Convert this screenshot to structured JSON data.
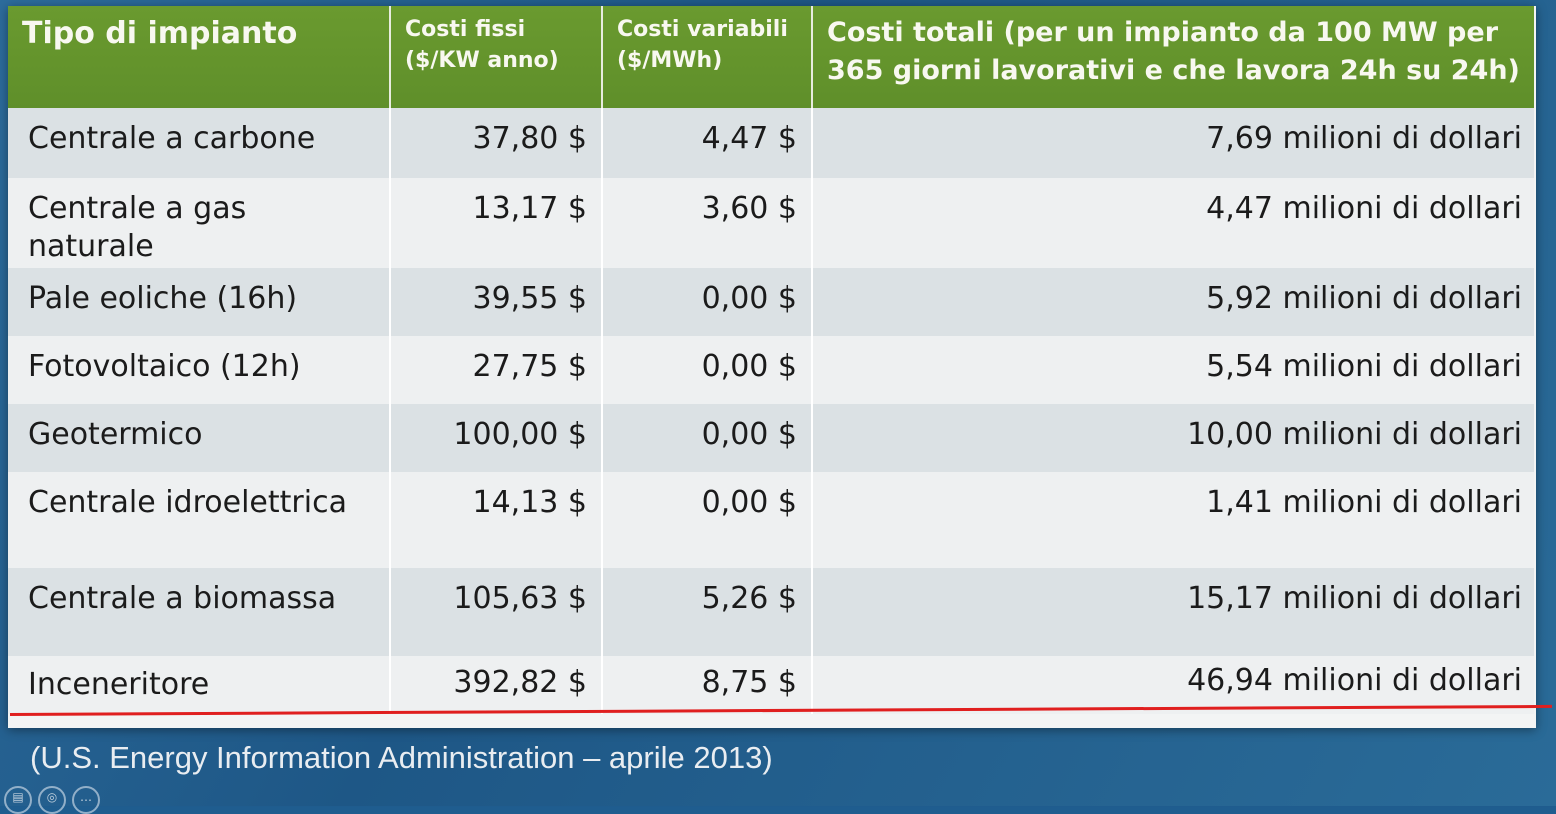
{
  "table": {
    "headers": {
      "type": "Tipo di impianto",
      "fixed": "Costi fissi\n($/KW anno)",
      "variable": "Costi variabili\n($/MWh)",
      "total": "Costi totali (per  un impianto da 100 MW per 365 giorni lavorativi e che lavora 24h su 24h)"
    },
    "rows": [
      {
        "name": "Centrale a carbone",
        "fixed": "37,80 $",
        "variable": "4,47 $",
        "total": "7,69 milioni di dollari"
      },
      {
        "name": "Centrale a gas naturale",
        "fixed": "13,17 $",
        "variable": "3,60 $",
        "total": "4,47 milioni di dollari"
      },
      {
        "name": "Pale eoliche (16h)",
        "fixed": "39,55 $",
        "variable": "0,00 $",
        "total": "5,92 milioni di dollari"
      },
      {
        "name": "Fotovoltaico (12h)",
        "fixed": "27,75 $",
        "variable": "0,00 $",
        "total": "5,54 milioni di dollari"
      },
      {
        "name": "Geotermico",
        "fixed": "100,00 $",
        "variable": "0,00 $",
        "total": "10,00 milioni di dollari"
      },
      {
        "name": "Centrale idroelettrica",
        "fixed": "14,13 $",
        "variable": "0,00 $",
        "total": "1,41 milioni di dollari"
      },
      {
        "name": "Centrale a biomassa",
        "fixed": "105,63 $",
        "variable": "5,26 $",
        "total": "15,17 milioni di dollari"
      },
      {
        "name": "Inceneritore",
        "fixed": "392,82 $",
        "variable": "8,75 $",
        "total": "46,94 milioni di dollari"
      }
    ]
  },
  "source": "(U.S. Energy Information Administration – aprile 2013)",
  "colors": {
    "header_green": "#5f8f2a",
    "highlight_red": "#e01f1f",
    "background_blue": "#1e5786"
  }
}
